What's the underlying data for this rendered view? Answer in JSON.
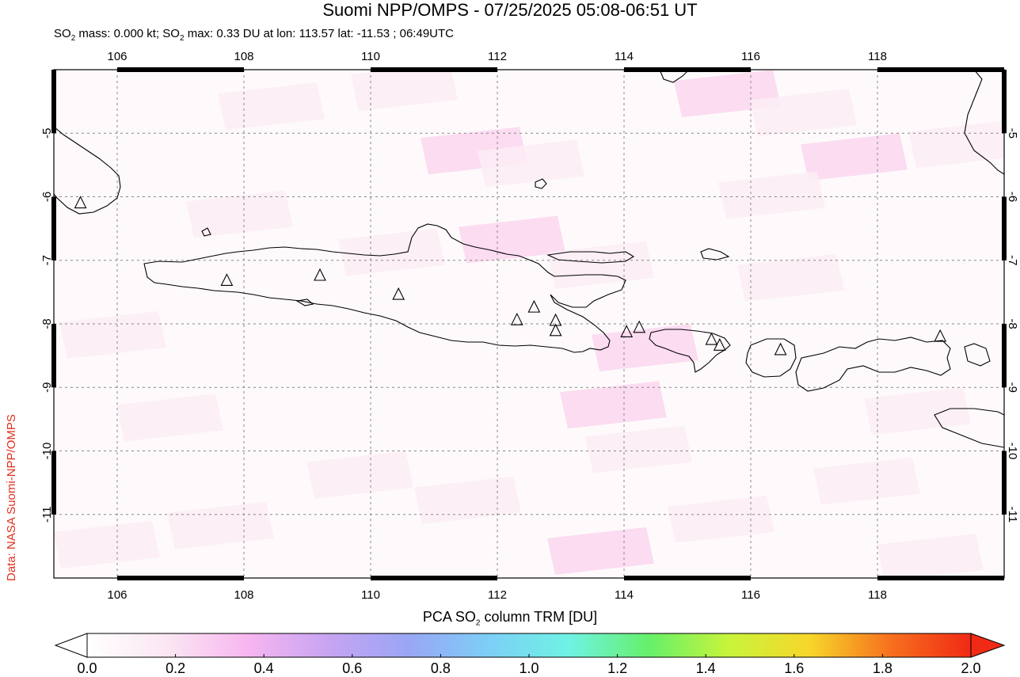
{
  "header": {
    "title": "Suomi NPP/OMPS - 07/25/2025 05:08-06:51 UT",
    "subtitle_prefix": "SO",
    "subtitle_sub1": "2",
    "subtitle_mid": " mass: 0.000 kt; SO",
    "subtitle_sub2": "2",
    "subtitle_suffix": " max: 0.33 DU at lon: 113.57 lat: -11.53 ; 06:49UTC"
  },
  "credit": "Data: NASA Suomi-NPP/OMPS",
  "map": {
    "lon_range": [
      105.0,
      120.0
    ],
    "lat_range": [
      -12.0,
      -4.0
    ],
    "lon_ticks": [
      "106",
      "108",
      "110",
      "112",
      "114",
      "116",
      "118"
    ],
    "lat_ticks": [
      "-5",
      "-6",
      "-7",
      "-8",
      "-9",
      "-10",
      "-11"
    ],
    "gridlines": true,
    "volcano_marker": "triangle-icon",
    "volcanoes": [
      {
        "lon": 105.42,
        "lat": -6.1
      },
      {
        "lon": 107.73,
        "lat": -7.32
      },
      {
        "lon": 109.2,
        "lat": -7.24
      },
      {
        "lon": 110.44,
        "lat": -7.54
      },
      {
        "lon": 112.31,
        "lat": -7.94
      },
      {
        "lon": 112.58,
        "lat": -7.74
      },
      {
        "lon": 112.92,
        "lat": -7.95
      },
      {
        "lon": 112.92,
        "lat": -8.11
      },
      {
        "lon": 114.04,
        "lat": -8.13
      },
      {
        "lon": 114.24,
        "lat": -8.06
      },
      {
        "lon": 115.38,
        "lat": -8.25
      },
      {
        "lon": 115.51,
        "lat": -8.34
      },
      {
        "lon": 116.47,
        "lat": -8.41
      },
      {
        "lon": 118.99,
        "lat": -8.2
      }
    ],
    "so2_colors": {
      "background": "#fefafb",
      "low": "#fcecf4",
      "mid": "#fbd6ef"
    }
  },
  "colorbar": {
    "title_prefix": "PCA SO",
    "title_sub": "2",
    "title_suffix": " column TRM [DU]",
    "ticks": [
      "0.0",
      "0.2",
      "0.4",
      "0.6",
      "0.8",
      "1.0",
      "1.2",
      "1.4",
      "1.6",
      "1.8",
      "2.0"
    ],
    "range": [
      0.0,
      2.0
    ],
    "colors": [
      "#ffffff",
      "#fbe6f2",
      "#f7b6f0",
      "#c7a4f2",
      "#9aa6f5",
      "#7ccff6",
      "#6ff2e4",
      "#66f06a",
      "#c9f43a",
      "#f7d62a",
      "#f7701e",
      "#f02a14"
    ]
  }
}
